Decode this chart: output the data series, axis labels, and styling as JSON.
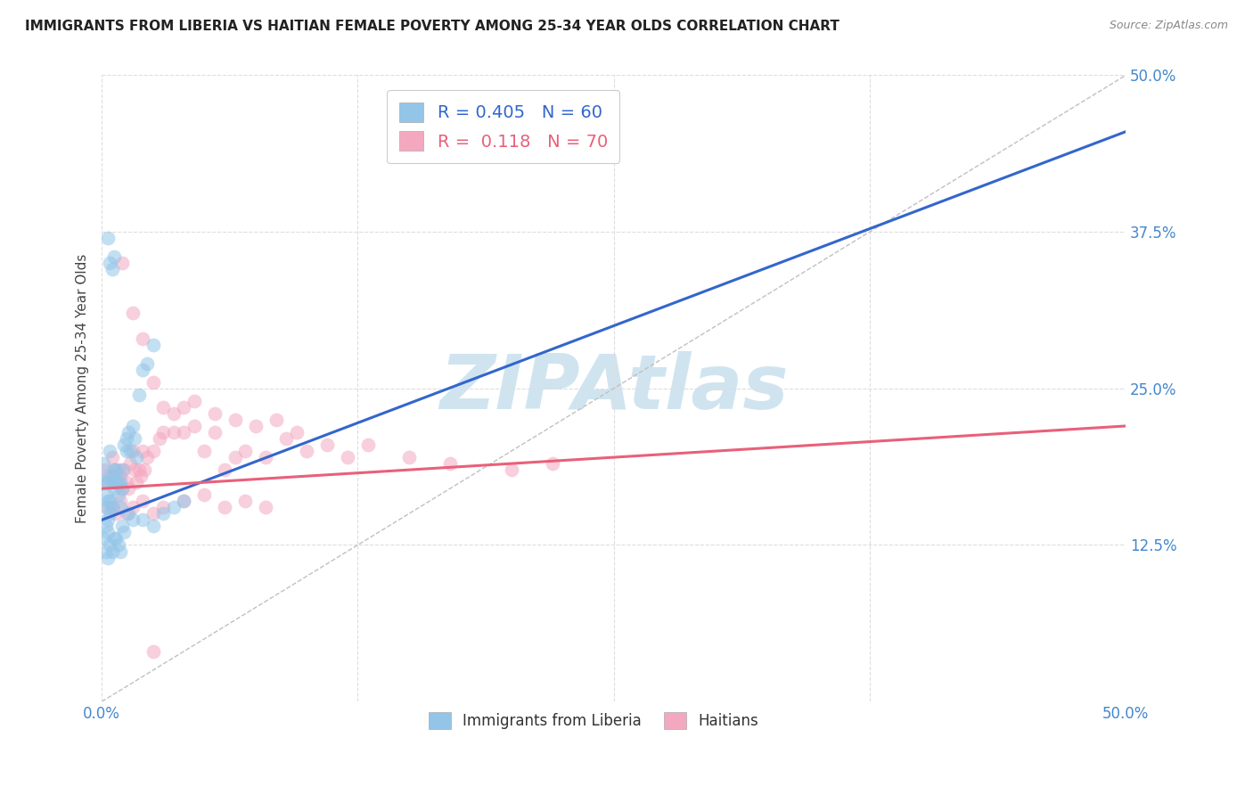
{
  "title": "IMMIGRANTS FROM LIBERIA VS HAITIAN FEMALE POVERTY AMONG 25-34 YEAR OLDS CORRELATION CHART",
  "source": "Source: ZipAtlas.com",
  "ylabel": "Female Poverty Among 25-34 Year Olds",
  "xlim": [
    0.0,
    0.5
  ],
  "ylim": [
    0.0,
    0.5
  ],
  "xticks": [
    0.0,
    0.125,
    0.25,
    0.375,
    0.5
  ],
  "xticklabels": [
    "0.0%",
    "",
    "",
    "",
    "50.0%"
  ],
  "yticks": [
    0.0,
    0.125,
    0.25,
    0.375,
    0.5
  ],
  "yticklabels": [
    "",
    "12.5%",
    "25.0%",
    "37.5%",
    "50.0%"
  ],
  "liberia_color": "#92C5E8",
  "haiti_color": "#F4A8C0",
  "liberia_line_color": "#3366CC",
  "haiti_line_color": "#E8607A",
  "diagonal_color": "#C0C0C0",
  "watermark_text": "ZIPAtlas",
  "watermark_color": "#D0E4F0",
  "R_liberia": 0.405,
  "N_liberia": 60,
  "R_haiti": 0.118,
  "N_haiti": 70,
  "liberia_x": [
    0.001,
    0.001,
    0.002,
    0.002,
    0.002,
    0.003,
    0.003,
    0.003,
    0.004,
    0.004,
    0.004,
    0.005,
    0.005,
    0.005,
    0.006,
    0.006,
    0.007,
    0.007,
    0.008,
    0.008,
    0.009,
    0.009,
    0.01,
    0.01,
    0.011,
    0.012,
    0.012,
    0.013,
    0.014,
    0.015,
    0.016,
    0.017,
    0.018,
    0.02,
    0.022,
    0.025,
    0.003,
    0.004,
    0.005,
    0.006,
    0.001,
    0.002,
    0.002,
    0.003,
    0.003,
    0.004,
    0.005,
    0.006,
    0.007,
    0.008,
    0.009,
    0.01,
    0.011,
    0.013,
    0.015,
    0.02,
    0.025,
    0.03,
    0.035,
    0.04
  ],
  "liberia_y": [
    0.175,
    0.19,
    0.18,
    0.165,
    0.155,
    0.175,
    0.16,
    0.145,
    0.16,
    0.15,
    0.2,
    0.155,
    0.18,
    0.175,
    0.185,
    0.17,
    0.185,
    0.175,
    0.175,
    0.165,
    0.175,
    0.155,
    0.185,
    0.17,
    0.205,
    0.2,
    0.21,
    0.215,
    0.2,
    0.22,
    0.21,
    0.195,
    0.245,
    0.265,
    0.27,
    0.285,
    0.37,
    0.35,
    0.345,
    0.355,
    0.13,
    0.12,
    0.14,
    0.135,
    0.115,
    0.125,
    0.12,
    0.13,
    0.13,
    0.125,
    0.12,
    0.14,
    0.135,
    0.15,
    0.145,
    0.145,
    0.14,
    0.15,
    0.155,
    0.16
  ],
  "haiti_x": [
    0.002,
    0.003,
    0.004,
    0.005,
    0.006,
    0.007,
    0.008,
    0.009,
    0.01,
    0.011,
    0.012,
    0.013,
    0.014,
    0.015,
    0.016,
    0.017,
    0.018,
    0.019,
    0.02,
    0.021,
    0.022,
    0.025,
    0.028,
    0.03,
    0.035,
    0.04,
    0.045,
    0.05,
    0.055,
    0.06,
    0.065,
    0.07,
    0.08,
    0.09,
    0.1,
    0.12,
    0.15,
    0.17,
    0.2,
    0.22,
    0.003,
    0.005,
    0.007,
    0.009,
    0.012,
    0.015,
    0.02,
    0.025,
    0.03,
    0.04,
    0.05,
    0.06,
    0.07,
    0.08,
    0.025,
    0.03,
    0.035,
    0.04,
    0.045,
    0.055,
    0.065,
    0.075,
    0.085,
    0.095,
    0.11,
    0.13,
    0.01,
    0.015,
    0.02,
    0.025
  ],
  "haiti_y": [
    0.185,
    0.175,
    0.18,
    0.195,
    0.185,
    0.175,
    0.185,
    0.18,
    0.17,
    0.185,
    0.175,
    0.17,
    0.19,
    0.2,
    0.185,
    0.175,
    0.185,
    0.18,
    0.2,
    0.185,
    0.195,
    0.2,
    0.21,
    0.215,
    0.215,
    0.215,
    0.22,
    0.2,
    0.215,
    0.185,
    0.195,
    0.2,
    0.195,
    0.21,
    0.2,
    0.195,
    0.195,
    0.19,
    0.185,
    0.19,
    0.155,
    0.155,
    0.15,
    0.16,
    0.15,
    0.155,
    0.16,
    0.15,
    0.155,
    0.16,
    0.165,
    0.155,
    0.16,
    0.155,
    0.255,
    0.235,
    0.23,
    0.235,
    0.24,
    0.23,
    0.225,
    0.22,
    0.225,
    0.215,
    0.205,
    0.205,
    0.35,
    0.31,
    0.29,
    0.04
  ],
  "liberia_trend_x": [
    0.0,
    0.5
  ],
  "liberia_trend_y": [
    0.145,
    0.455
  ],
  "haiti_trend_x": [
    0.0,
    0.5
  ],
  "haiti_trend_y": [
    0.17,
    0.22
  ]
}
